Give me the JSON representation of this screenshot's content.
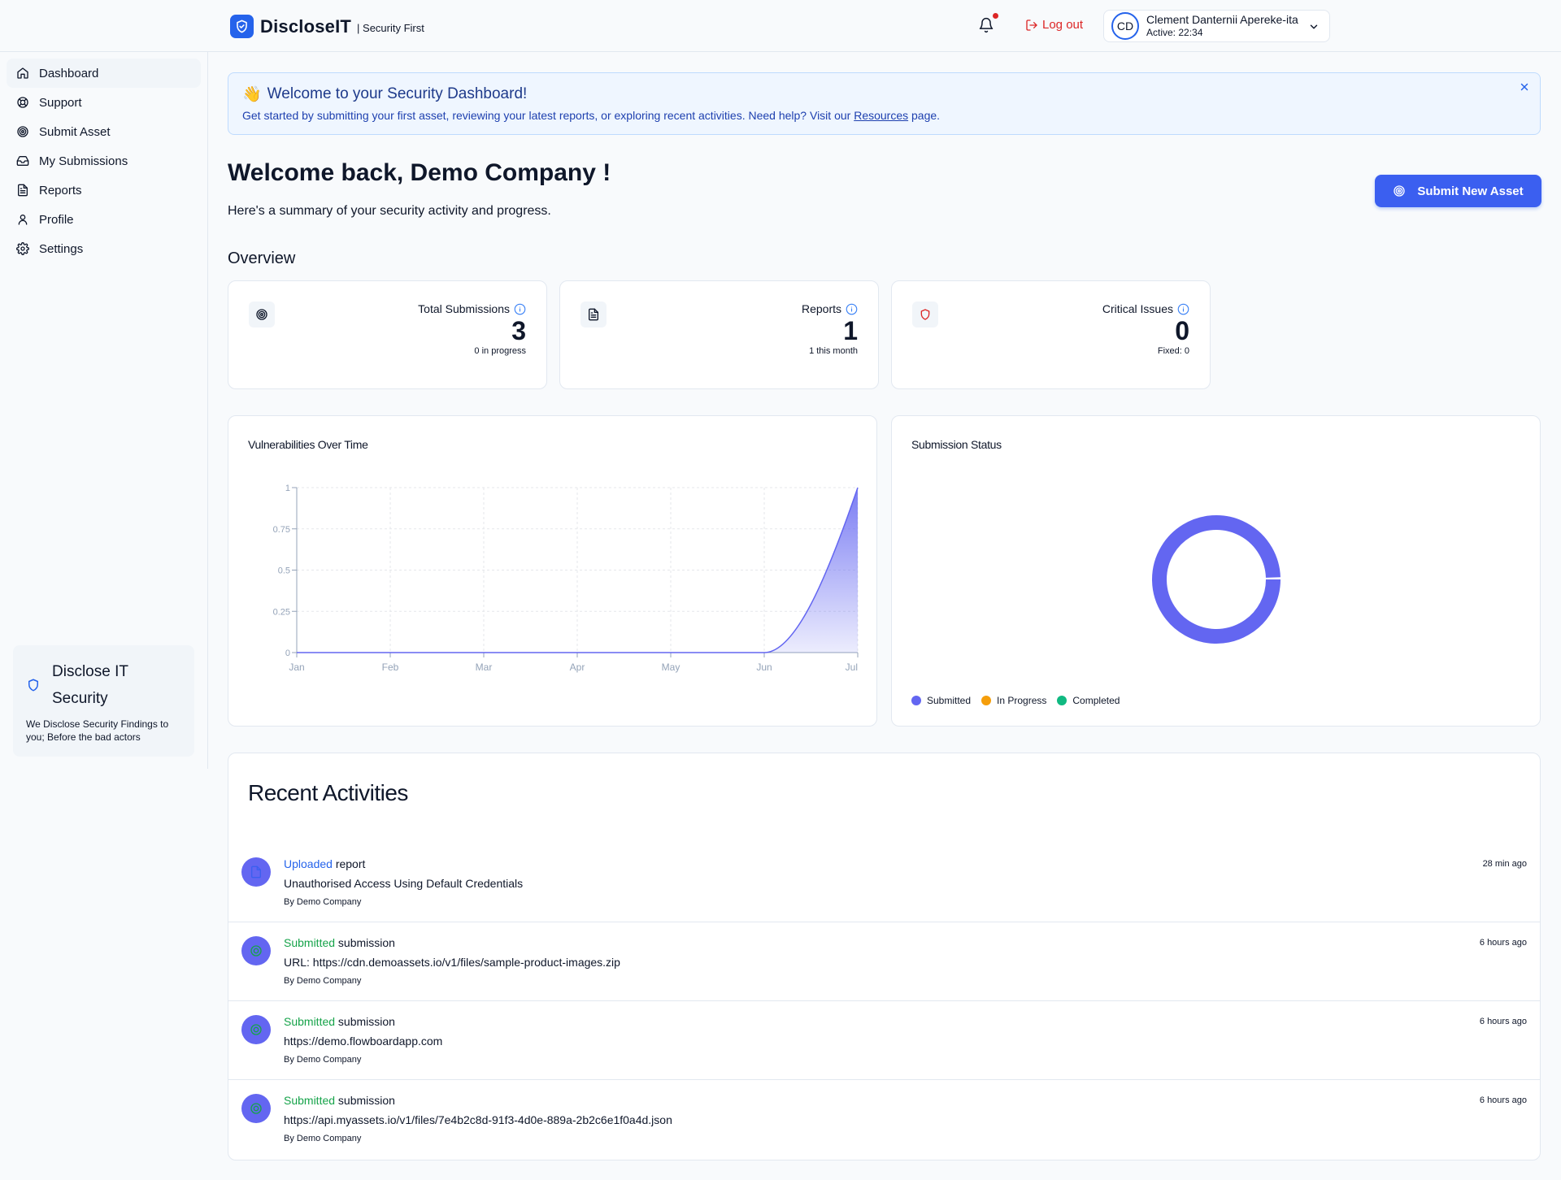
{
  "header": {
    "brand_name": "DiscloseIT",
    "brand_tag": "| Security First",
    "logout_label": "Log out",
    "user": {
      "initials": "CD",
      "name": "Clement Danternii Apereke-ita",
      "active": "Active: 22:34"
    }
  },
  "sidebar": {
    "items": [
      {
        "label": "Dashboard",
        "icon": "home-icon"
      },
      {
        "label": "Support",
        "icon": "lifebuoy-icon"
      },
      {
        "label": "Submit Asset",
        "icon": "target-icon"
      },
      {
        "label": "My Submissions",
        "icon": "inbox-icon"
      },
      {
        "label": "Reports",
        "icon": "file-text-icon"
      },
      {
        "label": "Profile",
        "icon": "user-icon"
      },
      {
        "label": "Settings",
        "icon": "gear-icon"
      }
    ],
    "card": {
      "title": "Disclose IT Security",
      "description": "We Disclose Security Findings to you; Before the bad actors"
    }
  },
  "banner": {
    "emoji": "👋",
    "title": "Welcome to your Security Dashboard!",
    "text_before": "Get started by submitting your first asset, reviewing your latest reports, or exploring recent activities. Need help? Visit our ",
    "link": "Resources",
    "text_after": " page."
  },
  "main": {
    "welcome": "Welcome back, Demo Company !",
    "subtitle": "Here's a summary of your security activity and progress.",
    "submit_button": "Submit New Asset",
    "overview": "Overview"
  },
  "stats": [
    {
      "label": "Total Submissions",
      "value": "3",
      "sub": "0 in progress",
      "icon": "target-icon"
    },
    {
      "label": "Reports",
      "value": "1",
      "sub": "1 this month",
      "icon": "file-text-icon"
    },
    {
      "label": "Critical Issues",
      "value": "0",
      "sub": "Fixed: 0",
      "icon": "shield-icon"
    }
  ],
  "chart_data": [
    {
      "type": "area",
      "title": "Vulnerabilities Over Time",
      "categories": [
        "Jan",
        "Feb",
        "Mar",
        "Apr",
        "May",
        "Jun",
        "Jul"
      ],
      "values": [
        0,
        0,
        0,
        0,
        0,
        0,
        1
      ],
      "ylim": [
        0,
        1
      ],
      "yticks": [
        "0",
        "0.25",
        "0.5",
        "0.75",
        "1"
      ],
      "grid": true,
      "color": "#6366f1"
    },
    {
      "type": "pie",
      "title": "Submission Status",
      "labels": [
        "Submitted",
        "In Progress",
        "Completed"
      ],
      "values": [
        3,
        0,
        0
      ],
      "colors": [
        "#6366f1",
        "#f59e0b",
        "#10b981"
      ],
      "legend": "bottom-left"
    }
  ],
  "activities": {
    "title": "Recent Activities",
    "items": [
      {
        "verb": "Uploaded",
        "noun": " report",
        "detail": "Unauthorised Access Using Default Credentials",
        "by": "By Demo Company",
        "time": "28 min ago",
        "kind": "report"
      },
      {
        "verb": "Submitted",
        "noun": " submission",
        "detail": "URL: https://cdn.demoassets.io/v1/files/sample-product-images.zip",
        "by": "By Demo Company",
        "time": "6 hours ago",
        "kind": "submission"
      },
      {
        "verb": "Submitted",
        "noun": " submission",
        "detail": "https://demo.flowboardapp.com",
        "by": "By Demo Company",
        "time": "6 hours ago",
        "kind": "submission"
      },
      {
        "verb": "Submitted",
        "noun": " submission",
        "detail": "https://api.myassets.io/v1/files/7e4b2c8d-91f3-4d0e-889a-2b2c6e1f0a4d.json",
        "by": "By Demo Company",
        "time": "6 hours ago",
        "kind": "submission"
      }
    ]
  }
}
